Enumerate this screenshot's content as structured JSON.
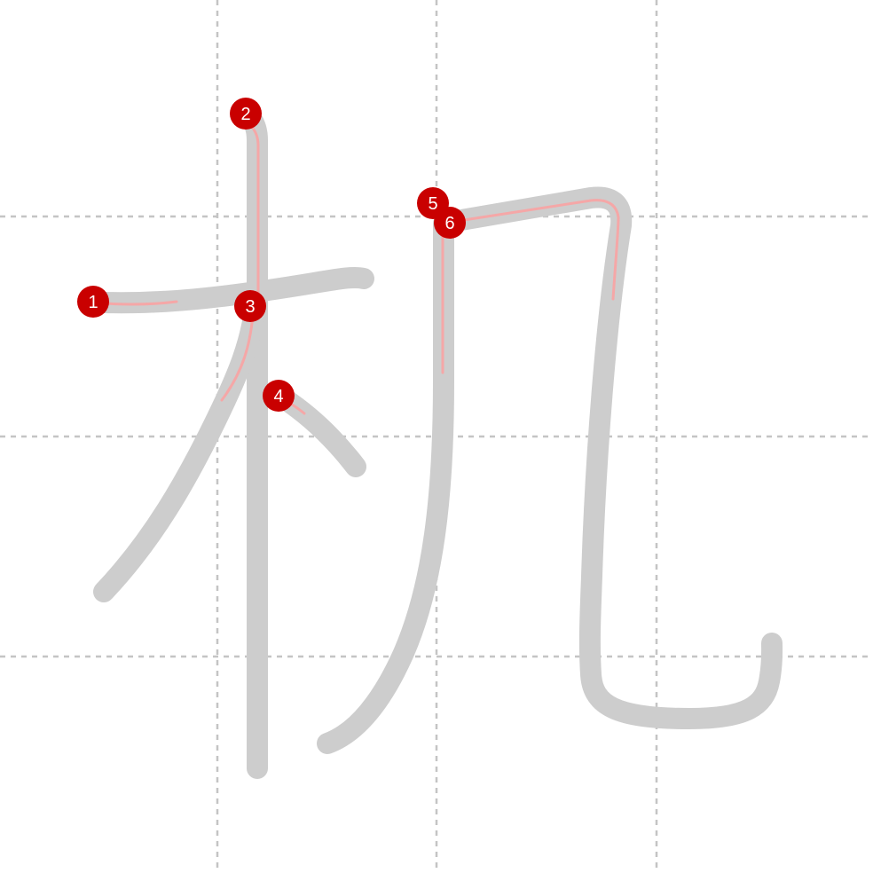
{
  "character": "机",
  "colors": {
    "background": "#ffffff",
    "grid": "#c4c4c4",
    "stroke": "#cdcdcd",
    "guide": "#f5a7a7",
    "marker": "#c90000",
    "marker_text": "#ffffff"
  },
  "strokes": [
    {
      "order": "1",
      "label": "1"
    },
    {
      "order": "2",
      "label": "2"
    },
    {
      "order": "3",
      "label": "3"
    },
    {
      "order": "4",
      "label": "4"
    },
    {
      "order": "5",
      "label": "5"
    },
    {
      "order": "6",
      "label": "6"
    }
  ]
}
